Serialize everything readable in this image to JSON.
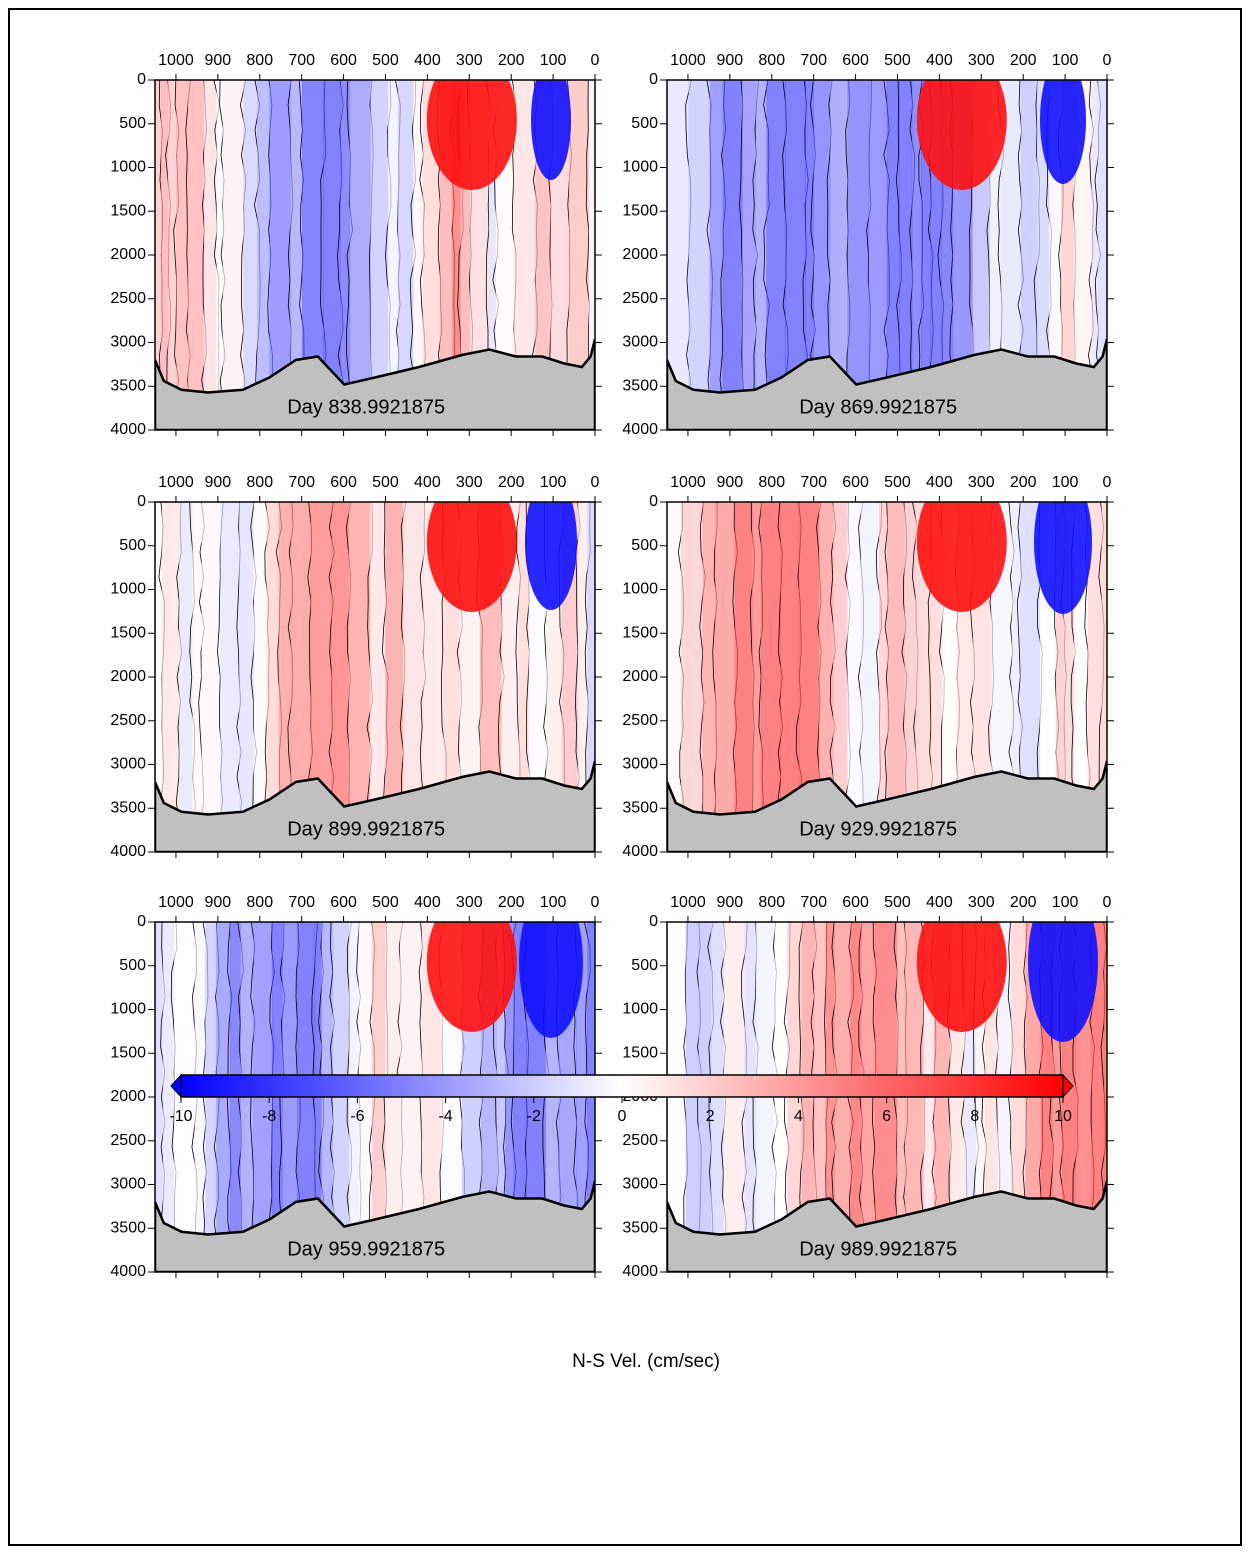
{
  "chart_data": [
    {
      "type": "contour",
      "title": "Day 838.9921875",
      "xlim": [
        1050,
        0
      ],
      "ylim": [
        4000,
        0
      ],
      "xticks": [
        1000,
        900,
        800,
        700,
        600,
        500,
        400,
        300,
        200,
        100,
        0
      ],
      "yticks": [
        0,
        500,
        1000,
        1500,
        2000,
        2500,
        3000,
        3500,
        4000
      ]
    },
    {
      "type": "contour",
      "title": "Day 869.9921875",
      "xlim": [
        1050,
        0
      ],
      "ylim": [
        4000,
        0
      ],
      "xticks": [
        1000,
        900,
        800,
        700,
        600,
        500,
        400,
        300,
        200,
        100,
        0
      ],
      "yticks": [
        0,
        500,
        1000,
        1500,
        2000,
        2500,
        3000,
        3500,
        4000
      ]
    },
    {
      "type": "contour",
      "title": "Day 899.9921875",
      "xlim": [
        1050,
        0
      ],
      "ylim": [
        4000,
        0
      ],
      "xticks": [
        1000,
        900,
        800,
        700,
        600,
        500,
        400,
        300,
        200,
        100,
        0
      ],
      "yticks": [
        0,
        500,
        1000,
        1500,
        2000,
        2500,
        3000,
        3500,
        4000
      ]
    },
    {
      "type": "contour",
      "title": "Day 929.9921875",
      "xlim": [
        1050,
        0
      ],
      "ylim": [
        4000,
        0
      ],
      "xticks": [
        1000,
        900,
        800,
        700,
        600,
        500,
        400,
        300,
        200,
        100,
        0
      ],
      "yticks": [
        0,
        500,
        1000,
        1500,
        2000,
        2500,
        3000,
        3500,
        4000
      ]
    },
    {
      "type": "contour",
      "title": "Day 959.9921875",
      "xlim": [
        1050,
        0
      ],
      "ylim": [
        4000,
        0
      ],
      "xticks": [
        1000,
        900,
        800,
        700,
        600,
        500,
        400,
        300,
        200,
        100,
        0
      ],
      "yticks": [
        0,
        500,
        1000,
        1500,
        2000,
        2500,
        3000,
        3500,
        4000
      ]
    },
    {
      "type": "contour",
      "title": "Day 989.9921875",
      "xlim": [
        1050,
        0
      ],
      "ylim": [
        4000,
        0
      ],
      "xticks": [
        1000,
        900,
        800,
        700,
        600,
        500,
        400,
        300,
        200,
        100,
        0
      ],
      "yticks": [
        0,
        500,
        1000,
        1500,
        2000,
        2500,
        3000,
        3500,
        4000
      ]
    }
  ],
  "colorbar": {
    "label": "N-S Vel. (cm/sec)",
    "lim": [
      -10,
      10
    ],
    "ticks": [
      -10,
      -8,
      -6,
      -4,
      -2,
      0,
      2,
      4,
      6,
      8,
      10
    ],
    "colors": [
      "#0000ff",
      "#ffffff",
      "#ff0000"
    ]
  }
}
